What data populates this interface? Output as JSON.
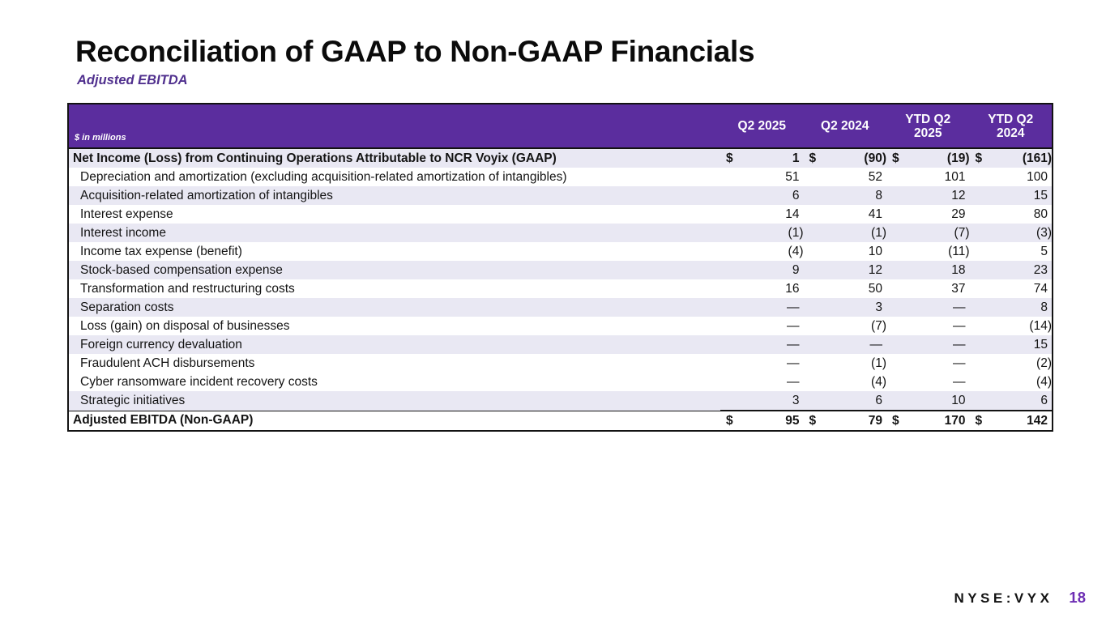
{
  "slide": {
    "title": "Reconciliation of GAAP to Non-GAAP Financials",
    "subtitle": "Adjusted EBITDA"
  },
  "table": {
    "unit_note": "$ in millions",
    "columns": [
      {
        "line1": "Q2 2025",
        "line2": ""
      },
      {
        "line1": "Q2 2024",
        "line2": ""
      },
      {
        "line1": "YTD Q2",
        "line2": "2025"
      },
      {
        "line1": "YTD Q2",
        "line2": "2024"
      }
    ],
    "rows": [
      {
        "label": "Net Income (Loss) from Continuing Operations Attributable to NCR Voyix (GAAP)",
        "dollar": "$",
        "values": [
          "1",
          "(90)",
          "(19)",
          "(161)"
        ]
      },
      {
        "label": "Depreciation and amortization (excluding acquisition-related amortization of intangibles)",
        "dollar": "",
        "values": [
          "51",
          "52",
          "101",
          "100"
        ]
      },
      {
        "label": "Acquisition-related amortization of intangibles",
        "dollar": "",
        "values": [
          "6",
          "8",
          "12",
          "15"
        ]
      },
      {
        "label": "Interest expense",
        "dollar": "",
        "values": [
          "14",
          "41",
          "29",
          "80"
        ]
      },
      {
        "label": "Interest income",
        "dollar": "",
        "values": [
          "(1)",
          "(1)",
          "(7)",
          "(3)"
        ]
      },
      {
        "label": "Income tax expense (benefit)",
        "dollar": "",
        "values": [
          "(4)",
          "10",
          "(11)",
          "5"
        ]
      },
      {
        "label": "Stock-based compensation expense",
        "dollar": "",
        "values": [
          "9",
          "12",
          "18",
          "23"
        ]
      },
      {
        "label": "Transformation and restructuring costs",
        "dollar": "",
        "values": [
          "16",
          "50",
          "37",
          "74"
        ]
      },
      {
        "label": "Separation costs",
        "dollar": "",
        "values": [
          "—",
          "3",
          "—",
          "8"
        ]
      },
      {
        "label": "Loss (gain) on disposal of businesses",
        "dollar": "",
        "values": [
          "—",
          "(7)",
          "—",
          "(14)"
        ]
      },
      {
        "label": "Foreign currency devaluation",
        "dollar": "",
        "values": [
          "—",
          "—",
          "—",
          "15"
        ]
      },
      {
        "label": "Fraudulent ACH disbursements",
        "dollar": "",
        "values": [
          "—",
          "(1)",
          "—",
          "(2)"
        ]
      },
      {
        "label": "Cyber ransomware incident recovery costs",
        "dollar": "",
        "values": [
          "—",
          "(4)",
          "—",
          "(4)"
        ]
      },
      {
        "label": "Strategic initiatives",
        "dollar": "",
        "values": [
          "3",
          "6",
          "10",
          "6"
        ]
      },
      {
        "label": "Adjusted EBITDA (Non-GAAP)",
        "dollar": "$",
        "values": [
          "95",
          "79",
          "170",
          "142"
        ]
      }
    ]
  },
  "footer": {
    "ticker": "NYSE:VYX",
    "page_number": "18"
  },
  "colors": {
    "header_purple": "#5B2D9E",
    "row_stripe_lavender": "#E9E8F3",
    "subtitle_purple": "#50308E",
    "page_number_purple": "#6E2FB4",
    "border_black": "#131313"
  }
}
